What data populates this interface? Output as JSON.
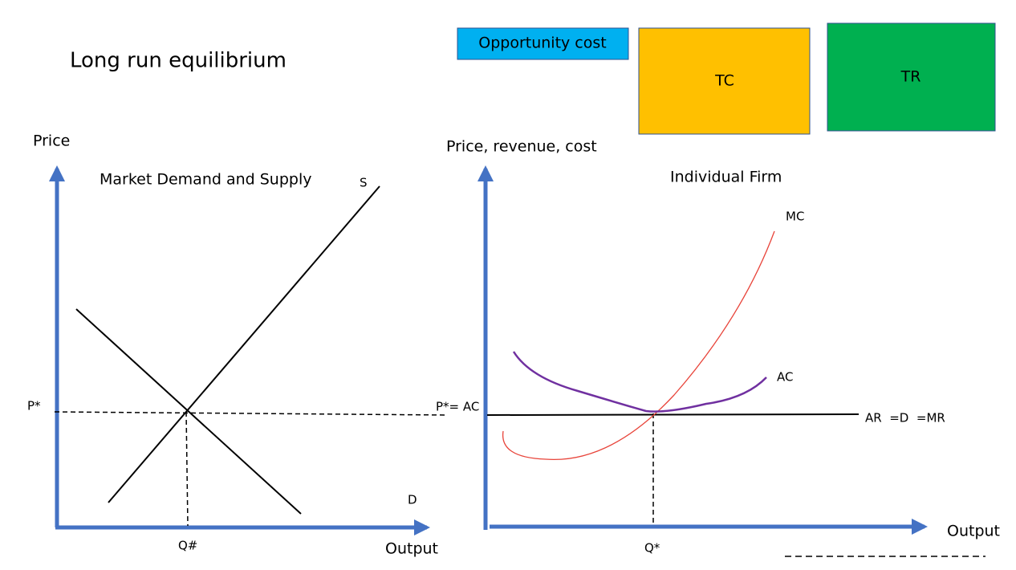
{
  "header": {
    "title": "Long run equilibrium"
  },
  "boxes": [
    {
      "label": "Opportunity cost"
    },
    {
      "label": "TC"
    },
    {
      "label": "TR"
    }
  ],
  "market": {
    "y_axis_label": "Price",
    "title": "Market Demand and Supply",
    "supply_label": "S",
    "demand_label": "D",
    "price_label": "P*",
    "quantity_label": "Q#",
    "x_axis_label": "Output"
  },
  "firm": {
    "y_axis_label": "Price, revenue, cost",
    "title": "Individual Firm",
    "mc_label": "MC",
    "ac_label": "AC",
    "price_label": "P*= AC",
    "revenue_label": "AR  =D  =MR",
    "quantity_label": "Q*",
    "x_axis_label": "Output"
  }
}
